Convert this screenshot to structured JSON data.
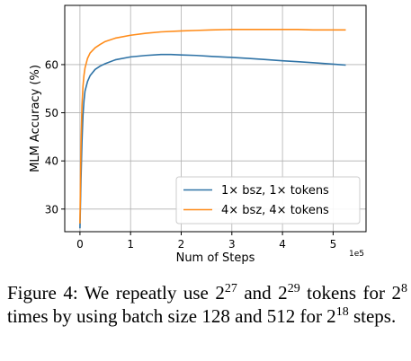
{
  "chart_data": {
    "type": "line",
    "xlabel": "Num of Steps",
    "ylabel": "MLM Accuracy (%)",
    "x_offset_text": "1e5",
    "xlim": [
      -0.3,
      5.65
    ],
    "ylim": [
      25.3,
      72.3
    ],
    "x_ticks": [
      0,
      1,
      2,
      3,
      4,
      5
    ],
    "y_ticks": [
      30,
      40,
      50,
      60
    ],
    "grid": true,
    "legend_placement": "lower right",
    "series": [
      {
        "name": "1× bsz, 1× tokens",
        "color": "#2f73a6",
        "x": [
          0,
          0.02,
          0.04,
          0.06,
          0.08,
          0.1,
          0.15,
          0.2,
          0.3,
          0.4,
          0.5,
          0.7,
          1.0,
          1.3,
          1.6,
          1.8,
          2.0,
          2.3,
          2.6,
          3.0,
          3.3,
          3.6,
          4.0,
          4.3,
          4.6,
          5.0,
          5.25
        ],
        "y": [
          26.0,
          36.0,
          44.0,
          49.5,
          52.5,
          54.5,
          56.5,
          57.7,
          59.0,
          59.7,
          60.2,
          61.0,
          61.6,
          61.9,
          62.1,
          62.1,
          62.0,
          61.9,
          61.7,
          61.5,
          61.3,
          61.1,
          60.8,
          60.6,
          60.4,
          60.1,
          59.9
        ]
      },
      {
        "name": "4× bsz, 4× tokens",
        "color": "#ff8c1a",
        "x": [
          0,
          0.02,
          0.04,
          0.06,
          0.08,
          0.1,
          0.15,
          0.2,
          0.3,
          0.4,
          0.5,
          0.7,
          1.0,
          1.3,
          1.6,
          2.0,
          2.3,
          2.6,
          3.0,
          3.3,
          3.6,
          4.0,
          4.3,
          4.6,
          5.0,
          5.25
        ],
        "y": [
          27.0,
          43.0,
          51.5,
          55.5,
          57.8,
          59.3,
          61.3,
          62.4,
          63.5,
          64.2,
          64.8,
          65.5,
          66.1,
          66.5,
          66.8,
          67.0,
          67.1,
          67.2,
          67.3,
          67.3,
          67.3,
          67.3,
          67.3,
          67.2,
          67.2,
          67.2
        ]
      }
    ]
  },
  "caption": {
    "text_1": "Figure 4: We repeatly use 2",
    "sup_1": "27",
    "text_2": " and 2",
    "sup_2": "29",
    "text_3": " tokens for 2",
    "sup_3": "8",
    "text_4": " times by using batch size 128 and 512 for 2",
    "sup_4": "18",
    "text_5": " steps."
  }
}
